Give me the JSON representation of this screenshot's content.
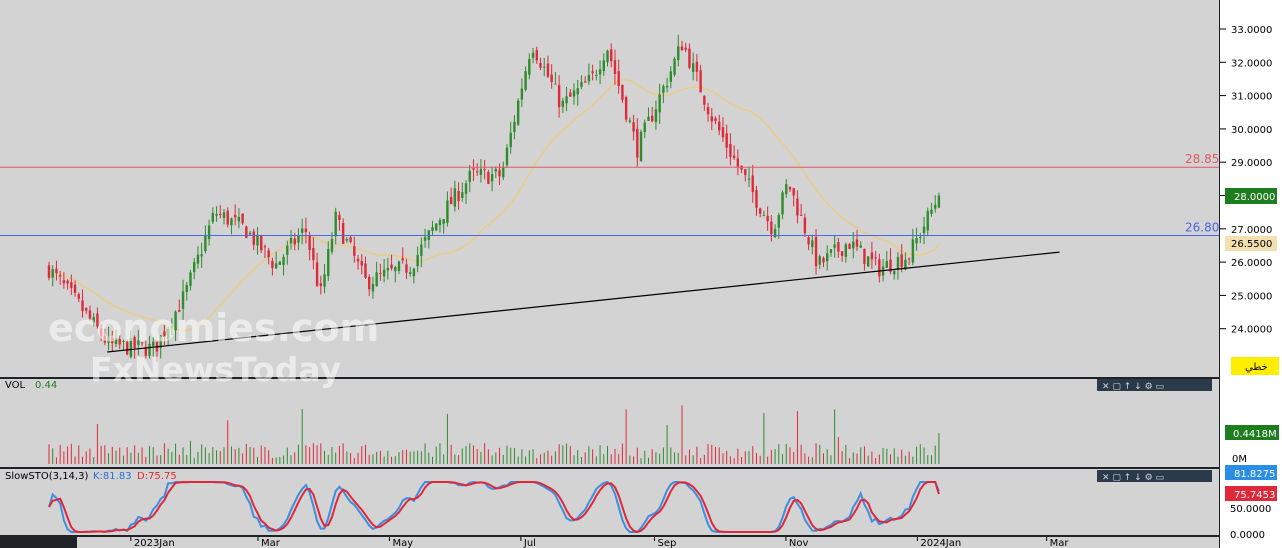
{
  "panels": {
    "volume": {
      "label": "VOL",
      "value": "0.44",
      "value_badge": "0.4418M",
      "zero_label": "0M"
    },
    "stochastic": {
      "label": "SlowSTO(3,14,3)",
      "k_text": "K:81.83",
      "d_text": "D:75.75",
      "k_badge": "81.8275",
      "d_badge": "75.7453",
      "ticks": [
        "50.0000",
        "0.0000"
      ]
    }
  },
  "watermark": {
    "line1": "economies.com",
    "line2": "FxNewsToday"
  },
  "price_badges": {
    "last": "28.0000",
    "ma": "26.5500",
    "button": "خطي"
  },
  "colors": {
    "up": "#2e8b2e",
    "down": "#e0283a",
    "ma": "#e8cc8a",
    "resistance": "#e05a66",
    "support": "#4a67e6",
    "trendline": "#000000",
    "k_line": "#3b8fe0",
    "d_line": "#e0283a",
    "plot_bg": "#d3d3d3"
  },
  "chart_data": {
    "type": "candlestick",
    "x_ticks": [
      "2023Jan",
      "Mar",
      "May",
      "Jul",
      "Sep",
      "Nov",
      "2024Jan",
      "Mar"
    ],
    "y_ticks": [
      "33.0000",
      "32.0000",
      "31.0000",
      "30.0000",
      "29.0000",
      "28.0000",
      "27.0000",
      "26.0000",
      "25.0000",
      "24.0000"
    ],
    "ylim": [
      23,
      33.3
    ],
    "levels": [
      {
        "label": "28.85",
        "value": 28.85
      },
      {
        "label": "26.80",
        "value": 26.8
      }
    ],
    "trendline": {
      "from": [
        "2022-12-21",
        23.3
      ],
      "to": [
        "2024-03-07",
        26.3
      ]
    },
    "last_close": 28.0,
    "moving_average_last": 26.55,
    "candle_count": 240,
    "close_path": [
      [
        "2022-11-24",
        25.8
      ],
      [
        "2022-12-08",
        24.7
      ],
      [
        "2022-12-22",
        23.5
      ],
      [
        "2023-01-12",
        23.4
      ],
      [
        "2023-01-26",
        25.0
      ],
      [
        "2023-02-09",
        27.5
      ],
      [
        "2023-02-23",
        27.0
      ],
      [
        "2023-03-09",
        25.9
      ],
      [
        "2023-03-23",
        27.0
      ],
      [
        "2023-03-30",
        25.0
      ],
      [
        "2023-04-06",
        27.3
      ],
      [
        "2023-04-20",
        25.4
      ],
      [
        "2023-05-11",
        25.9
      ],
      [
        "2023-05-25",
        27.4
      ],
      [
        "2023-06-08",
        28.6
      ],
      [
        "2023-06-22",
        28.6
      ],
      [
        "2023-07-06",
        32.6
      ],
      [
        "2023-07-20",
        30.7
      ],
      [
        "2023-08-03",
        31.5
      ],
      [
        "2023-08-10",
        32.5
      ],
      [
        "2023-08-24",
        29.4
      ],
      [
        "2023-09-07",
        31.5
      ],
      [
        "2023-09-14",
        32.6
      ],
      [
        "2023-09-28",
        30.3
      ],
      [
        "2023-10-12",
        28.6
      ],
      [
        "2023-10-26",
        27.0
      ],
      [
        "2023-11-02",
        28.4
      ],
      [
        "2023-11-16",
        25.9
      ],
      [
        "2023-11-30",
        26.6
      ],
      [
        "2023-12-14",
        25.8
      ],
      [
        "2023-12-28",
        26.2
      ],
      [
        "2024-01-11",
        28.0
      ]
    ],
    "volume": {
      "ylim": [
        0,
        1.0
      ],
      "last": 0.4418
    },
    "stochastic": {
      "ylim": [
        0,
        100
      ],
      "k_last": 81.83,
      "d_last": 75.75
    }
  }
}
